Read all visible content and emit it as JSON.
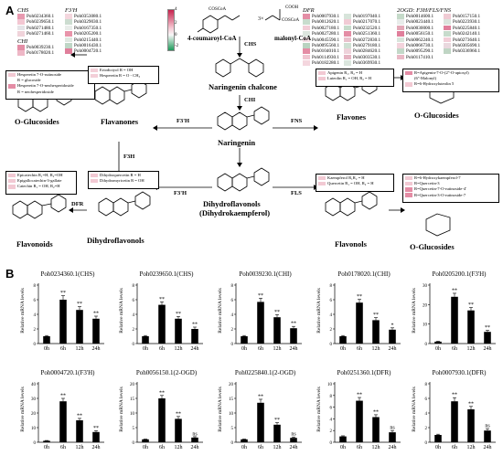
{
  "panel_a": "A",
  "panel_b": "B",
  "gene_groups": [
    {
      "title": "CHS",
      "genes": [
        "Poh0234360.1",
        "Poh0239650.1",
        "Poh0271480.1",
        "Poh0271460.1"
      ],
      "colors": [
        "#e89ab0",
        "#f3c7d2",
        "#e5e3e7",
        "#f0d3da"
      ]
    },
    {
      "title": "CHI",
      "genes": [
        "Poh0039230.1",
        "Poh0178020.1"
      ],
      "colors": [
        "#e48ea6",
        "#eeb7c6"
      ]
    },
    {
      "title": "F3'H",
      "genes": [
        "Poh0353080.1",
        "Poh0329030.1",
        "Poh0167350.1",
        "Poh0205200.1",
        "Poh0215440.1",
        "Poh0016430.1",
        "Poh0004720.1"
      ],
      "colors": [
        "#f4d7de",
        "#ccdcd0",
        "#e9edea",
        "#e894aa",
        "#dfe8e1",
        "#bfd6c6",
        "#e07f9b"
      ]
    },
    {
      "title": "DFR",
      "genes": [
        "Poh0007930.1",
        "Poh0012620.1",
        "Poh0027180.1",
        "Poh0027280.1",
        "Poh0045590.1",
        "Poh0095560.1",
        "Poh0104010.1",
        "Poh0114930.1",
        "Poh0182280.1"
      ],
      "colors": [
        "#e48da5",
        "#c8dccd",
        "#f2cdd7",
        "#dde6df",
        "#f6e0e6",
        "#b9d3c0",
        "#e48da5",
        "#f0c6d1",
        "#f4d6de"
      ]
    },
    {
      "title": "",
      "genes": [
        "Poh0197040.1",
        "Poh0217070.1",
        "Poh0232520.1",
        "Poh0251360.1",
        "Poh0272830.1",
        "Poh0279180.1",
        "Poh0284620.1",
        "Poh0303530.1",
        "Poh0369930.1"
      ],
      "colors": [
        "#d7e4da",
        "#f1cbd5",
        "#c6dbcb",
        "#e48da5",
        "#e9c2cd",
        "#cfe0d3",
        "#eed2da",
        "#e5b4c2",
        "#dbe6de"
      ]
    },
    {
      "title": "2OGD: F3H/FLS/FNS",
      "genes": [
        "Poh0014600.1",
        "Poh0023440.1",
        "Poh0030000.1",
        "Poh0056150.1",
        "Poh0062240.1",
        "Poh0066730.1",
        "Poh0095290.1",
        "Poh0117410.1"
      ],
      "colors": [
        "#c5dac9",
        "#e8ecea",
        "#e3a9b8",
        "#e07f9b",
        "#d9e5dc",
        "#f3d3dc",
        "#c3d8c8",
        "#e9b9c6"
      ]
    },
    {
      "title": "",
      "genes": [
        "Poh0157150.1",
        "Poh0223930.1",
        "Poh0225840.1",
        "Poh0242140.1",
        "Poh0273640.1",
        "Poh0305690.1",
        "Poh0336960.1"
      ],
      "colors": [
        "#f0cbd4",
        "#dae5dd",
        "#e07f9b",
        "#c7dbcc",
        "#f2ced8",
        "#e9d8de",
        "#bfd5c4"
      ]
    }
  ],
  "legend": {
    "max": "4",
    "mid": "2",
    "zero": "0",
    "min": "-2"
  },
  "molecules": {
    "coumaroyl": "4-coumaroyl-CoA",
    "malonyl": "malonyl-CoA",
    "malonyl_coef": "3×",
    "scoa1": "COSCoA",
    "scoa2": "COSCoA",
    "cooh": "COOH",
    "chalcone": "Naringenin chalcone",
    "naringenin": "Naringenin",
    "flavanones": "Flavanones",
    "flavones": "Flavones",
    "dihydroflavonols": "Dihydroflavonols",
    "dihydro_main_1": "Dihydroflavonols",
    "dihydro_main_2": "(Dihydrokaempferol)",
    "flavonols": "Flavonols",
    "flavonoids": "Flavonoids",
    "oglu_left": "O-Glucosides",
    "oglu_right_top": "O-Glucosides",
    "oglu_right_bottom": "O-Glucosides"
  },
  "enzymes": {
    "chs": "CHS",
    "chi": "CHI",
    "f3h_1": "F3'H",
    "fns": "FNS",
    "f3h_2": "F3H",
    "f3h_3": "F3'H",
    "fls": "FLS",
    "dfr": "DFR"
  },
  "boxes": {
    "hesperetin": [
      {
        "t": "Hesperetin 7-O-rutinoside",
        "c": "#f2c9d3"
      },
      {
        "t": "R = glucoside",
        "c": "#ffffff"
      },
      {
        "t": "Hesperetin 7-O-neohesperidoside",
        "c": "#e48da5"
      },
      {
        "t": "R = neohesperidoside",
        "c": "#ffffff"
      }
    ],
    "eriodictyol": [
      {
        "t": "Eriodictyol R = OH",
        "c": "#f3cfd8"
      },
      {
        "t": "Hesperetin R = O - CH₃",
        "c": "#f3cfd8"
      }
    ],
    "apigenin": [
      {
        "t": "Apigenin  R₁, R₂ = H",
        "c": "#f2c9d3"
      },
      {
        "t": "Luteolin  R₁ = OH, R₂ = H",
        "c": "#f2c9d3"
      }
    ],
    "r_ogly": [
      {
        "t": "R=Apigenin-7-O-(2''-O-apiosyl)",
        "c": "#e48da5"
      },
      {
        "t": "(6''-Malonyl)",
        "c": "#ffffff"
      },
      {
        "t": "R=6-Hydroxyluteolin 5",
        "c": "#f2c9d3"
      }
    ],
    "epicatechin": [
      {
        "t": "Epicatechin R₁=H, R₂=OH",
        "c": "#f2c9d3"
      },
      {
        "t": "Epigallocatechin-3-gallate",
        "c": "#f2c9d3"
      },
      {
        "t": "Catechin  R₁ = OH, R₂=H",
        "c": "#f2c9d3"
      }
    ],
    "dihydroquercetin": [
      {
        "t": "Dihydroquercetin R = H",
        "c": "#f2c9d3"
      },
      {
        "t": "Dihydromyricetin R = OH",
        "c": "#f2c9d3"
      }
    ],
    "kaempferol": [
      {
        "t": "Kaempferol R₁R₂ = H",
        "c": "#f2c9d3"
      },
      {
        "t": "Quercetin R₁ = OH, R₂ = H",
        "c": "#f2c9d3"
      }
    ],
    "r_hydroxy": [
      {
        "t": "R=6-Hydroxykaempferol-7",
        "c": "#f2c9d3"
      },
      {
        "t": "R=Quercetin-3",
        "c": "#f2c9d3"
      },
      {
        "t": "R=Quercetin-7-O-rutinoside-4'",
        "c": "#e48da5"
      },
      {
        "t": "R=Quercetin-3-O-rutinoside-7",
        "c": "#e48da5"
      }
    ]
  },
  "ring_labels": {
    "r_left": "R",
    "r2_left": "R",
    "oh": "OH",
    "o": "O",
    "ho": "HO"
  },
  "chart_data": [
    {
      "type": "bar",
      "title": "Poh0234360.1(CHS)",
      "ylabel": "Relative mRNA levels",
      "categories": [
        "0h",
        "6h",
        "12h",
        "24h"
      ],
      "values": [
        1,
        6.0,
        4.6,
        3.4
      ],
      "errors": [
        0.1,
        0.55,
        0.45,
        0.35
      ],
      "sig": [
        "",
        "**",
        "**",
        "**"
      ],
      "ylim": [
        0,
        8
      ],
      "yticks": [
        0,
        2,
        4,
        6,
        8
      ]
    },
    {
      "type": "bar",
      "title": "Poh0239650.1(CHS)",
      "ylabel": "Relative mRNA levels",
      "categories": [
        "0h",
        "6h",
        "12h",
        "24h"
      ],
      "values": [
        1,
        5.3,
        3.4,
        2.0
      ],
      "errors": [
        0.1,
        0.4,
        0.3,
        0.25
      ],
      "sig": [
        "",
        "**",
        "**",
        "**"
      ],
      "ylim": [
        0,
        8
      ],
      "yticks": [
        0,
        2,
        4,
        6,
        8
      ]
    },
    {
      "type": "bar",
      "title": "Poh0039230.1(CHI)",
      "ylabel": "Relative mRNA levels",
      "categories": [
        "0h",
        "6h",
        "12h",
        "24h"
      ],
      "values": [
        1,
        5.7,
        3.6,
        2.1
      ],
      "errors": [
        0.1,
        0.5,
        0.35,
        0.25
      ],
      "sig": [
        "",
        "**",
        "**",
        "**"
      ],
      "ylim": [
        0,
        8
      ],
      "yticks": [
        0,
        2,
        4,
        6,
        8
      ]
    },
    {
      "type": "bar",
      "title": "Poh0178020.1(CHI)",
      "ylabel": "Relative mRNA levels",
      "categories": [
        "0h",
        "6h",
        "12h",
        "24h"
      ],
      "values": [
        1,
        5.6,
        3.2,
        1.9
      ],
      "errors": [
        0.1,
        0.45,
        0.35,
        0.25
      ],
      "sig": [
        "",
        "**",
        "**",
        "*"
      ],
      "ylim": [
        0,
        8
      ],
      "yticks": [
        0,
        2,
        4,
        6,
        8
      ]
    },
    {
      "type": "bar",
      "title": "Poh0205200.1(F3'H)",
      "ylabel": "Relative mRNA levels",
      "categories": [
        "0h",
        "6h",
        "12h",
        "24h"
      ],
      "values": [
        1,
        24,
        17,
        6
      ],
      "errors": [
        0.2,
        1.8,
        1.5,
        0.8
      ],
      "sig": [
        "",
        "**",
        "**",
        "**"
      ],
      "ylim": [
        0,
        30
      ],
      "yticks": [
        0,
        10,
        20,
        30
      ]
    },
    {
      "type": "bar",
      "title": "Poh0004720.1(F3'H)",
      "ylabel": "Relative mRNA levels",
      "categories": [
        "0h",
        "6h",
        "12h",
        "24h"
      ],
      "values": [
        1,
        28,
        15,
        7
      ],
      "errors": [
        0.2,
        2.0,
        1.3,
        0.9
      ],
      "sig": [
        "",
        "**",
        "**",
        "**"
      ],
      "ylim": [
        0,
        40
      ],
      "yticks": [
        0,
        10,
        20,
        30,
        40
      ]
    },
    {
      "type": "bar",
      "title": "Poh0056150.1(2-OGD)",
      "ylabel": "Relative mRNA levels",
      "categories": [
        "0h",
        "6h",
        "12h",
        "24h"
      ],
      "values": [
        1,
        15,
        8,
        1.6
      ],
      "errors": [
        0.1,
        1.0,
        0.8,
        0.3
      ],
      "sig": [
        "",
        "**",
        "**",
        "ns"
      ],
      "ylim": [
        0,
        20
      ],
      "yticks": [
        0,
        5,
        10,
        15,
        20
      ]
    },
    {
      "type": "bar",
      "title": "Poh0225840.1(2-OGD)",
      "ylabel": "Relative mRNA levels",
      "categories": [
        "0h",
        "6h",
        "12h",
        "24h"
      ],
      "values": [
        1,
        13.5,
        6,
        1.5
      ],
      "errors": [
        0.1,
        1.2,
        0.7,
        0.3
      ],
      "sig": [
        "",
        "**",
        "**",
        "ns"
      ],
      "ylim": [
        0,
        20
      ],
      "yticks": [
        0,
        5,
        10,
        15,
        20
      ]
    },
    {
      "type": "bar",
      "title": "Poh0251360.1(DFR)",
      "ylabel": "Relative mRNA levels",
      "categories": [
        "0h",
        "6h",
        "12h",
        "24h"
      ],
      "values": [
        1,
        7.1,
        4.3,
        1.7
      ],
      "errors": [
        0.1,
        0.55,
        0.4,
        0.3
      ],
      "sig": [
        "",
        "**",
        "**",
        "ns"
      ],
      "ylim": [
        0,
        10
      ],
      "yticks": [
        0,
        2,
        4,
        6,
        8,
        10
      ]
    },
    {
      "type": "bar",
      "title": "Poh0007930.1(DFR)",
      "ylabel": "Relative mRNA levels",
      "categories": [
        "0h",
        "6h",
        "12h",
        "24h"
      ],
      "values": [
        1,
        5.6,
        4.5,
        1.6
      ],
      "errors": [
        0.1,
        0.5,
        0.4,
        0.25
      ],
      "sig": [
        "",
        "**",
        "**",
        "ns"
      ],
      "ylim": [
        0,
        8
      ],
      "yticks": [
        0,
        2,
        4,
        6,
        8
      ]
    }
  ]
}
